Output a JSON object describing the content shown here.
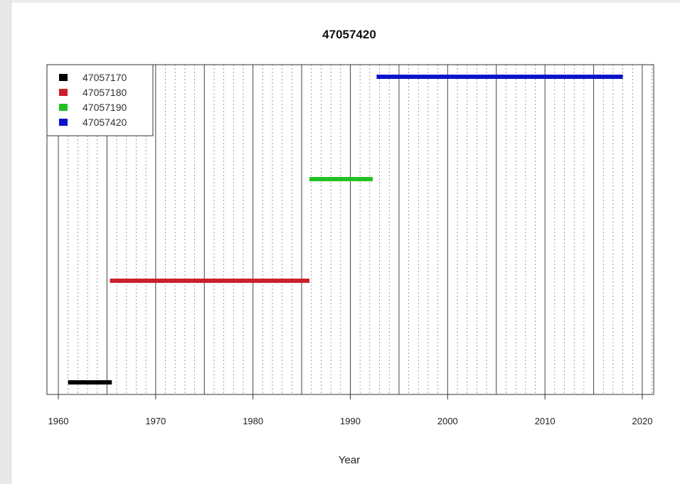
{
  "chart_data": {
    "type": "line",
    "title": "47057420",
    "xlabel": "Year",
    "ylabel": "",
    "xlim": [
      1959.8,
      2021.3
    ],
    "xticks": [
      1960,
      1970,
      1980,
      1990,
      2000,
      2010,
      2020
    ],
    "grid": {
      "major_every_years": 5,
      "minor_every_years": 1,
      "major_style": "solid",
      "minor_style": "dotted"
    },
    "legend_position": "top-left",
    "series": [
      {
        "name": "47057170",
        "color": "#000000",
        "level": 1,
        "x": [
          1961.0,
          1965.5
        ]
      },
      {
        "name": "47057180",
        "color": "#cc1f2b",
        "level": 2,
        "x": [
          1965.3,
          1985.8
        ]
      },
      {
        "name": "47057190",
        "color": "#22c122",
        "level": 3,
        "x": [
          1985.8,
          1992.3
        ]
      },
      {
        "name": "47057420",
        "color": "#0a14cc",
        "level": 4,
        "x": [
          1992.7,
          2018.0
        ]
      }
    ]
  }
}
